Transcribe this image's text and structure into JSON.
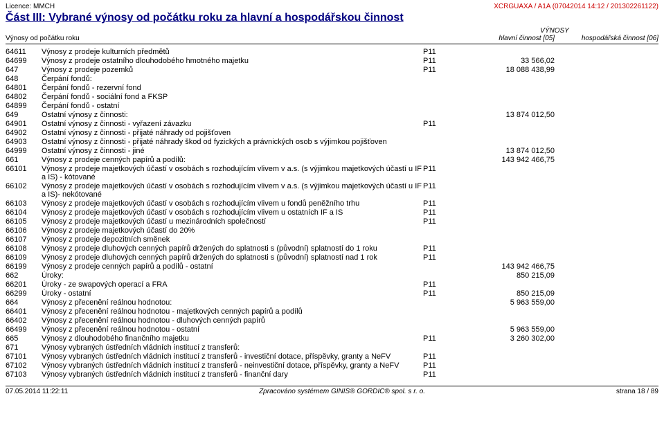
{
  "header": {
    "license": "Licence: MMCH",
    "doc_id": "XCRGUAXA / A1A (07042014 14:12 / 201302261122)"
  },
  "section_title": "Část III: Vybrané výnosy od počátku roku za hlavní a hospodářskou činnost",
  "col_headers": {
    "vynosy_label": "VÝNOSY",
    "left_label": "Výnosy od počátku roku",
    "hc_label": "hlavní činnost  [05]",
    "oc_label": "hospodářská činnost  [06]"
  },
  "rows": [
    {
      "code": "64611",
      "indent": 1,
      "desc": "Výnosy z prodeje kulturních předmětů",
      "p": "P11",
      "hc": "",
      "oc": ""
    },
    {
      "code": "64699",
      "indent": 1,
      "desc": "Výnosy z prodeje ostatního dlouhodobého hmotného majetku",
      "p": "P11",
      "hc": "33 566,02",
      "oc": ""
    },
    {
      "code": "647",
      "indent": 0,
      "desc": "Výnosy z prodeje pozemků",
      "p": "P11",
      "hc": "18 088 438,99",
      "oc": ""
    },
    {
      "code": "648",
      "indent": 0,
      "desc": "Čerpání fondů:",
      "p": "",
      "hc": "",
      "oc": ""
    },
    {
      "code": "64801",
      "indent": 1,
      "desc": "Čerpání fondů - rezervní fond",
      "p": "",
      "hc": "",
      "oc": ""
    },
    {
      "code": "64802",
      "indent": 1,
      "desc": "Čerpání fondů - sociální fond a FKSP",
      "p": "",
      "hc": "",
      "oc": ""
    },
    {
      "code": "64899",
      "indent": 1,
      "desc": "Čerpání fondů - ostatní",
      "p": "",
      "hc": "",
      "oc": ""
    },
    {
      "code": "649",
      "indent": 0,
      "desc": "Ostatní výnosy z činnosti:",
      "p": "",
      "hc": "13 874 012,50",
      "oc": ""
    },
    {
      "code": "64901",
      "indent": 1,
      "desc": "Ostatní výnosy z činnosti - vyřazení závazku",
      "p": "P11",
      "hc": "",
      "oc": ""
    },
    {
      "code": "64902",
      "indent": 1,
      "desc": "Ostatní výnosy z činnosti - přijaté náhrady od pojišťoven",
      "p": "",
      "hc": "",
      "oc": ""
    },
    {
      "code": "64903",
      "indent": 1,
      "desc": "Ostatní výnosy z činnosti - přijaté náhrady škod od fyzických a právnických osob s výjimkou pojišťoven",
      "p": "",
      "hc": "",
      "oc": ""
    },
    {
      "code": "64999",
      "indent": 1,
      "desc": "Ostatní výnosy z činnosti - jiné",
      "p": "",
      "hc": "13 874 012,50",
      "oc": ""
    },
    {
      "code": "661",
      "indent": 0,
      "desc": "Výnosy z prodeje cenných papírů a podílů:",
      "p": "",
      "hc": "143 942 466,75",
      "oc": ""
    },
    {
      "code": "66101",
      "indent": 1,
      "desc": "Výnosy z prodeje majetkových účastí v osobách s rozhodujícím vlivem v a.s. (s výjimkou majetkových účastí u IF a IS) - kótované",
      "p": "P11",
      "hc": "",
      "oc": ""
    },
    {
      "code": "66102",
      "indent": 1,
      "desc": "Výnosy z prodeje majetkových účastí v osobách s rozhodujícím vlivem v a.s. (s výjimkou majetkových účastí u IF a IS)- nekótované",
      "p": "P11",
      "hc": "",
      "oc": ""
    },
    {
      "code": "66103",
      "indent": 1,
      "desc": "Výnosy z prodeje majetkových účastí v osobách s rozhodujícím vlivem u fondů peněžního trhu",
      "p": "P11",
      "hc": "",
      "oc": ""
    },
    {
      "code": "66104",
      "indent": 1,
      "desc": "Výnosy z prodeje majetkových účastí v osobách s rozhodujícím vlivem u ostatních IF a IS",
      "p": "P11",
      "hc": "",
      "oc": ""
    },
    {
      "code": "66105",
      "indent": 1,
      "desc": "Výnosy z prodeje majetkových účastí u mezinárodních společností",
      "p": "P11",
      "hc": "",
      "oc": ""
    },
    {
      "code": "66106",
      "indent": 1,
      "desc": "Výnosy z prodeje majetkových účastí do 20%",
      "p": "",
      "hc": "",
      "oc": ""
    },
    {
      "code": "66107",
      "indent": 1,
      "desc": "Výnosy z prodeje depozitních směnek",
      "p": "",
      "hc": "",
      "oc": ""
    },
    {
      "code": "66108",
      "indent": 1,
      "desc": "Výnosy z prodeje dluhových cenných papírů držených do splatnosti s (původní) splatností do 1 roku",
      "p": "P11",
      "hc": "",
      "oc": ""
    },
    {
      "code": "66109",
      "indent": 1,
      "desc": "Výnosy z prodeje dluhových cenných papírů držených do splatnosti s (původní) splatností nad 1 rok",
      "p": "P11",
      "hc": "",
      "oc": ""
    },
    {
      "code": "66199",
      "indent": 1,
      "desc": "Výnosy z prodeje cenných papírů a podílů - ostatní",
      "p": "",
      "hc": "143 942 466,75",
      "oc": ""
    },
    {
      "code": "662",
      "indent": 0,
      "desc": "Úroky:",
      "p": "",
      "hc": "850 215,09",
      "oc": ""
    },
    {
      "code": "66201",
      "indent": 1,
      "desc": "Úroky - ze swapových operací a FRA",
      "p": "P11",
      "hc": "",
      "oc": ""
    },
    {
      "code": "66299",
      "indent": 1,
      "desc": "Úroky - ostatní",
      "p": "P11",
      "hc": "850 215,09",
      "oc": ""
    },
    {
      "code": "664",
      "indent": 0,
      "desc": "Výnosy z přecenění reálnou hodnotou:",
      "p": "",
      "hc": "5 963 559,00",
      "oc": ""
    },
    {
      "code": "66401",
      "indent": 1,
      "desc": "Výnosy z přecenění reálnou hodnotou - majetkových cenných papírů a podílů",
      "p": "",
      "hc": "",
      "oc": ""
    },
    {
      "code": "66402",
      "indent": 1,
      "desc": "Výnosy z přecenění reálnou hodnotou - dluhových cenných papírů",
      "p": "",
      "hc": "",
      "oc": ""
    },
    {
      "code": "66499",
      "indent": 1,
      "desc": "Výnosy z přecenění reálnou hodnotou - ostatní",
      "p": "",
      "hc": "5 963 559,00",
      "oc": ""
    },
    {
      "code": "665",
      "indent": 0,
      "desc": "Výnosy z dlouhodobého finančního majetku",
      "p": "P11",
      "hc": "3 260 302,00",
      "oc": ""
    },
    {
      "code": "671",
      "indent": 0,
      "desc": "Výnosy vybraných ústředních vládních institucí z transferů:",
      "p": "",
      "hc": "",
      "oc": ""
    },
    {
      "code": "67101",
      "indent": 1,
      "desc": "Výnosy vybraných ústředních vládních institucí z transferů - investiční dotace, příspěvky, granty a NeFV",
      "p": "P11",
      "hc": "",
      "oc": ""
    },
    {
      "code": "67102",
      "indent": 1,
      "desc": "Výnosy vybraných ústředních vládních institucí z transferů - neinvestiční dotace, příspěvky, granty a NeFV",
      "p": "P11",
      "hc": "",
      "oc": ""
    },
    {
      "code": "67103",
      "indent": 1,
      "desc": "Výnosy vybraných ústředních vládních institucí z transferů - finanční dary",
      "p": "P11",
      "hc": "",
      "oc": ""
    }
  ],
  "footer": {
    "left": "07.05.2014 11:22:11",
    "center": "Zpracováno systémem GINIS® GORDIC® spol. s  r. o.",
    "right": "strana 18 / 89"
  }
}
